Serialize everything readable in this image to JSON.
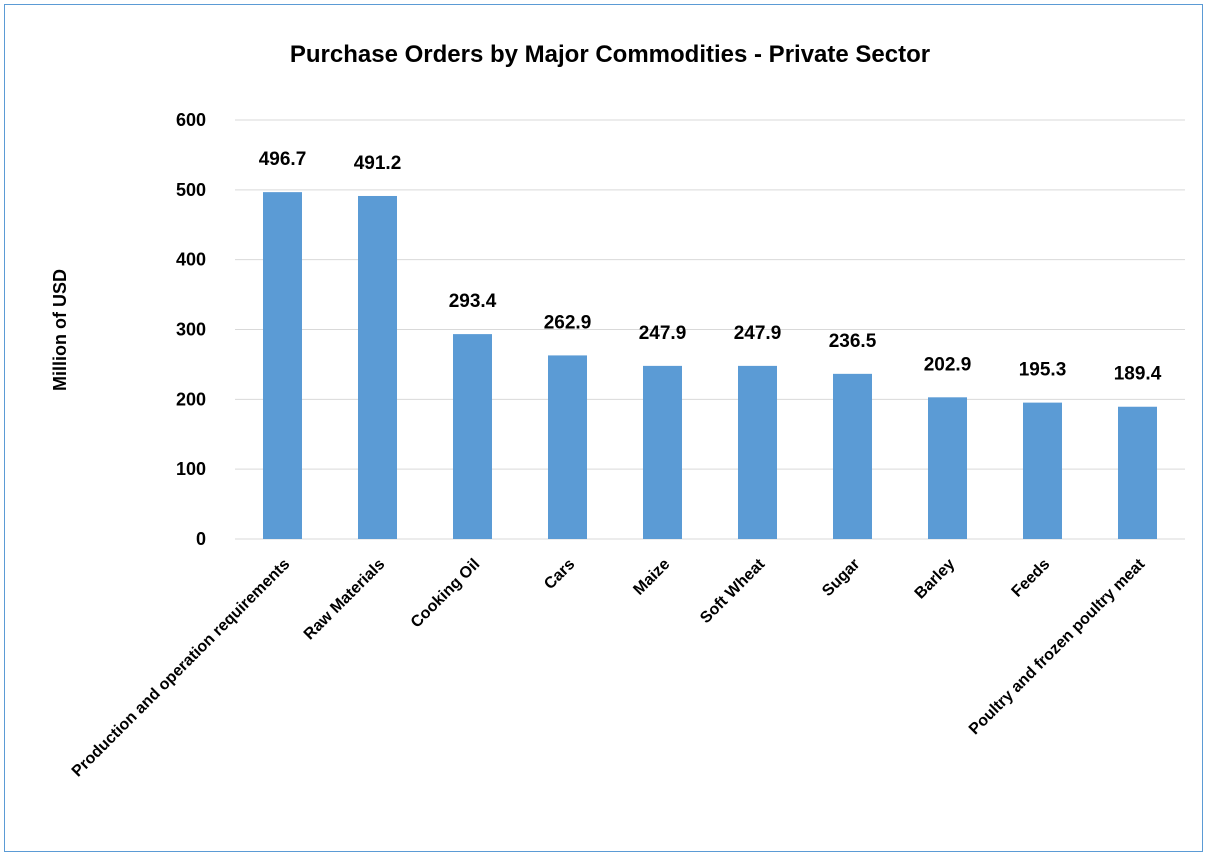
{
  "chart_data": {
    "type": "bar",
    "title": "Purchase Orders by Major Commodities - Private Sector",
    "xlabel": "",
    "ylabel": "Million of  USD",
    "ylim": [
      0,
      600
    ],
    "yticks": [
      0,
      100,
      200,
      300,
      400,
      500,
      600
    ],
    "grid": true,
    "categories": [
      "Production and operation requirements",
      "Raw Materials",
      "Cooking Oil",
      "Cars",
      "Maize",
      "Soft Wheat",
      "Sugar",
      "Barley",
      "Feeds",
      "Poultry and frozen poultry meat"
    ],
    "values": [
      496.7,
      491.2,
      293.4,
      262.9,
      247.9,
      247.9,
      236.5,
      202.9,
      195.3,
      189.4
    ],
    "data_labels": [
      "496.7",
      "491.2",
      "293.4",
      "262.9",
      "247.9",
      "247.9",
      "236.5",
      "202.9",
      "195.3",
      "189.4"
    ],
    "colors": {
      "bar": "#5b9bd5",
      "grid": "#d9d9d9",
      "border": "#5b9bd5"
    }
  }
}
